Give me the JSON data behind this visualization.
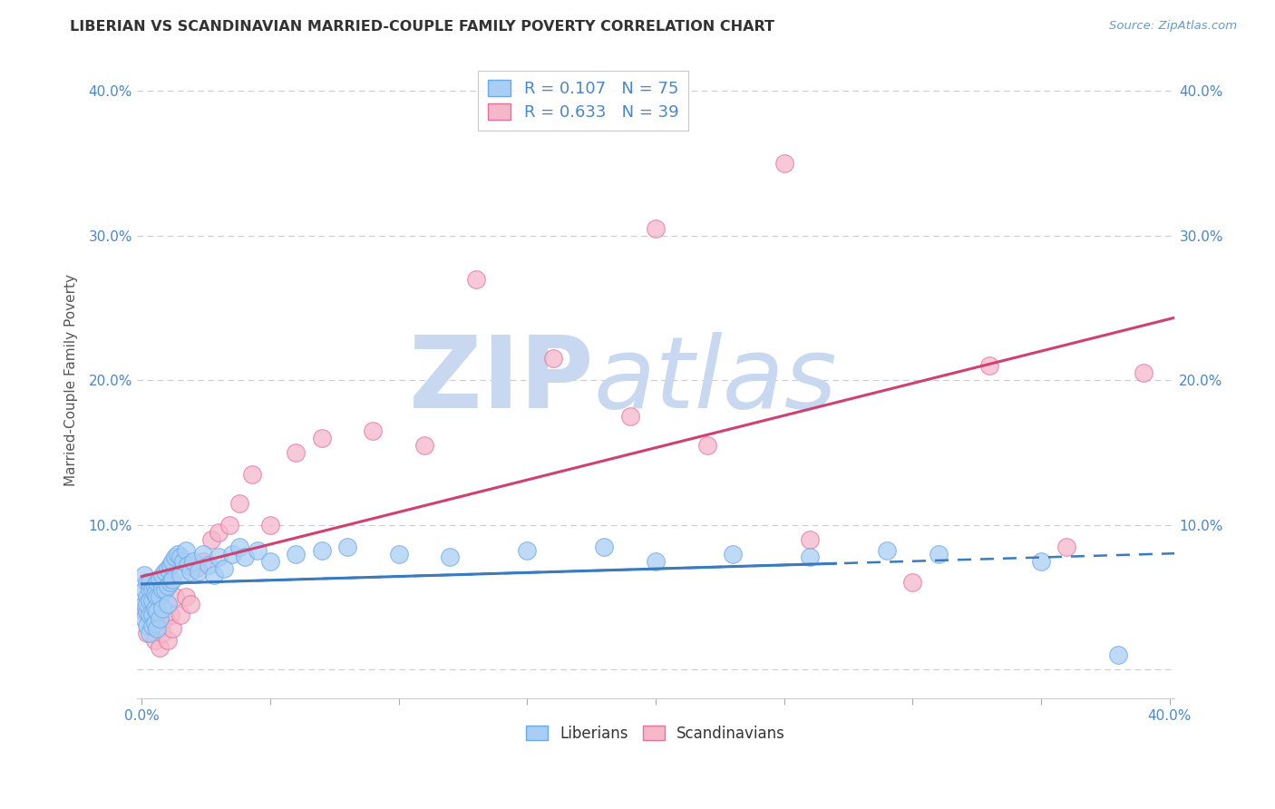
{
  "title": "LIBERIAN VS SCANDINAVIAN MARRIED-COUPLE FAMILY POVERTY CORRELATION CHART",
  "source": "Source: ZipAtlas.com",
  "ylabel": "Married-Couple Family Poverty",
  "xlabel": "",
  "xlim": [
    -0.002,
    0.402
  ],
  "ylim": [
    -0.02,
    0.42
  ],
  "xticks": [
    0.0,
    0.05,
    0.1,
    0.15,
    0.2,
    0.25,
    0.3,
    0.35,
    0.4
  ],
  "xticklabels": [
    "0.0%",
    "",
    "",
    "",
    "",
    "",
    "",
    "",
    "40.0%"
  ],
  "yticks": [
    0.0,
    0.1,
    0.2,
    0.3,
    0.4
  ],
  "yticklabels": [
    "",
    "10.0%",
    "20.0%",
    "30.0%",
    "40.0%"
  ],
  "liberian_color": "#a8cef5",
  "liberian_edge": "#6aaae8",
  "scandinavian_color": "#f5b8cb",
  "scandinavian_edge": "#e87098",
  "trend_liberian_color": "#3a7abf",
  "trend_scandinavian_color": "#d04070",
  "R_liberian": 0.107,
  "N_liberian": 75,
  "R_scandinavian": 0.633,
  "N_scandinavian": 39,
  "liberian_x": [
    0.001,
    0.001,
    0.001,
    0.001,
    0.002,
    0.002,
    0.002,
    0.002,
    0.002,
    0.003,
    0.003,
    0.003,
    0.003,
    0.003,
    0.004,
    0.004,
    0.004,
    0.004,
    0.005,
    0.005,
    0.005,
    0.005,
    0.006,
    0.006,
    0.006,
    0.006,
    0.007,
    0.007,
    0.007,
    0.008,
    0.008,
    0.008,
    0.009,
    0.009,
    0.01,
    0.01,
    0.01,
    0.011,
    0.011,
    0.012,
    0.012,
    0.013,
    0.014,
    0.015,
    0.015,
    0.016,
    0.017,
    0.018,
    0.019,
    0.02,
    0.022,
    0.024,
    0.026,
    0.028,
    0.03,
    0.032,
    0.035,
    0.038,
    0.04,
    0.045,
    0.05,
    0.06,
    0.07,
    0.08,
    0.1,
    0.12,
    0.15,
    0.18,
    0.2,
    0.23,
    0.26,
    0.29,
    0.31,
    0.35,
    0.38
  ],
  "liberian_y": [
    0.055,
    0.065,
    0.045,
    0.035,
    0.06,
    0.05,
    0.04,
    0.045,
    0.03,
    0.055,
    0.06,
    0.048,
    0.038,
    0.025,
    0.055,
    0.048,
    0.038,
    0.03,
    0.058,
    0.052,
    0.042,
    0.032,
    0.06,
    0.05,
    0.04,
    0.028,
    0.062,
    0.05,
    0.035,
    0.065,
    0.055,
    0.042,
    0.068,
    0.055,
    0.07,
    0.058,
    0.045,
    0.072,
    0.06,
    0.075,
    0.062,
    0.078,
    0.08,
    0.078,
    0.065,
    0.075,
    0.082,
    0.072,
    0.068,
    0.075,
    0.068,
    0.08,
    0.072,
    0.065,
    0.078,
    0.07,
    0.08,
    0.085,
    0.078,
    0.082,
    0.075,
    0.08,
    0.082,
    0.085,
    0.08,
    0.078,
    0.082,
    0.085,
    0.075,
    0.08,
    0.078,
    0.082,
    0.08,
    0.075,
    0.01
  ],
  "scandinavian_x": [
    0.001,
    0.002,
    0.003,
    0.004,
    0.005,
    0.006,
    0.007,
    0.008,
    0.009,
    0.01,
    0.011,
    0.012,
    0.013,
    0.015,
    0.017,
    0.019,
    0.021,
    0.024,
    0.027,
    0.03,
    0.034,
    0.038,
    0.043,
    0.05,
    0.06,
    0.07,
    0.09,
    0.11,
    0.13,
    0.16,
    0.19,
    0.22,
    0.26,
    0.3,
    0.33,
    0.36,
    0.39,
    0.2,
    0.25
  ],
  "scandinavian_y": [
    0.04,
    0.025,
    0.045,
    0.035,
    0.02,
    0.04,
    0.015,
    0.025,
    0.035,
    0.02,
    0.038,
    0.028,
    0.05,
    0.038,
    0.05,
    0.045,
    0.07,
    0.075,
    0.09,
    0.095,
    0.1,
    0.115,
    0.135,
    0.1,
    0.15,
    0.16,
    0.165,
    0.155,
    0.27,
    0.215,
    0.175,
    0.155,
    0.09,
    0.06,
    0.21,
    0.085,
    0.205,
    0.305,
    0.35
  ],
  "watermark_zip": "ZIP",
  "watermark_atlas": "atlas",
  "watermark_color_zip": "#c8d8f0",
  "watermark_color_atlas": "#c8d8f0",
  "legend_label_color": "#4a86c8",
  "background_color": "#ffffff",
  "grid_color": "#cccccc"
}
